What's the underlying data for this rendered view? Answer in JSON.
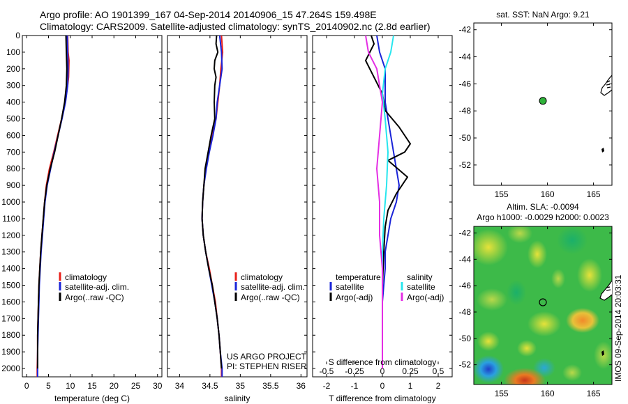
{
  "figure": {
    "title_line1": "Argo profile: AO 1901399_167 04-Sep-2014 20140906_15 47.264S 159.498E",
    "title_line2": "Climatology: CARS2009. Satellite-adjusted climatology: synTS_20140902.nc (2.8d earlier)",
    "side_stamp": "IMOS 09-Sep-2014 20:03:31",
    "project_line1": "US ARGO PROJECT",
    "project_line2": "PI: STEPHEN RISER",
    "colors": {
      "climatology": "#e8201a",
      "satellite": "#1a24d8",
      "argo": "#000000",
      "sat_salinity": "#27e6ee",
      "argo_salinity": "#e42ee4",
      "float_marker": "#2fb23a"
    }
  },
  "chart_data": [
    {
      "id": "temperature",
      "type": "line",
      "xlabel": "temperature (deg C)",
      "xlim": [
        -1,
        31
      ],
      "ylim": [
        2050,
        0
      ],
      "xticks": [
        "0",
        "5",
        "10",
        "15",
        "20",
        "25",
        "30"
      ],
      "yticks": [
        "0",
        "100",
        "200",
        "300",
        "400",
        "500",
        "600",
        "700",
        "800",
        "900",
        "1000",
        "1100",
        "1200",
        "1300",
        "1400",
        "1500",
        "1600",
        "1700",
        "1800",
        "1900",
        "2000"
      ],
      "legend": [
        "climatology",
        "satellite-adj. clim.",
        "Argo(..raw -QC)"
      ],
      "series": [
        {
          "name": "climatology",
          "color": "#e8201a",
          "points": [
            [
              9.4,
              0
            ],
            [
              9.5,
              100
            ],
            [
              9.7,
              150
            ],
            [
              9.6,
              250
            ],
            [
              9.4,
              300
            ],
            [
              8.8,
              400
            ],
            [
              8.0,
              500
            ],
            [
              7.1,
              600
            ],
            [
              6.2,
              700
            ],
            [
              5.2,
              800
            ],
            [
              4.5,
              900
            ],
            [
              4.1,
              1000
            ],
            [
              3.8,
              1100
            ],
            [
              3.5,
              1200
            ],
            [
              3.2,
              1300
            ],
            [
              3.0,
              1400
            ],
            [
              2.8,
              1500
            ],
            [
              2.7,
              1600
            ],
            [
              2.6,
              1700
            ],
            [
              2.5,
              1800
            ],
            [
              2.5,
              1900
            ],
            [
              2.4,
              2000
            ],
            [
              2.4,
              2050
            ]
          ]
        },
        {
          "name": "satellite-adj. clim.",
          "color": "#1a24d8",
          "points": [
            [
              9.3,
              0
            ],
            [
              9.4,
              100
            ],
            [
              9.5,
              200
            ],
            [
              9.4,
              300
            ],
            [
              8.9,
              400
            ],
            [
              8.1,
              500
            ],
            [
              7.2,
              600
            ],
            [
              6.3,
              700
            ],
            [
              5.5,
              800
            ],
            [
              4.7,
              900
            ],
            [
              4.2,
              1000
            ],
            [
              3.9,
              1100
            ],
            [
              3.6,
              1200
            ],
            [
              3.3,
              1300
            ],
            [
              3.1,
              1400
            ],
            [
              2.9,
              1500
            ],
            [
              2.8,
              1600
            ],
            [
              2.7,
              1700
            ],
            [
              2.6,
              1800
            ],
            [
              2.5,
              1900
            ],
            [
              2.5,
              2000
            ],
            [
              2.5,
              2050
            ]
          ]
        },
        {
          "name": "Argo(..raw -QC)",
          "color": "#000000",
          "points": [
            [
              9.0,
              0
            ],
            [
              9.1,
              100
            ],
            [
              9.2,
              200
            ],
            [
              9.1,
              300
            ],
            [
              8.7,
              400
            ],
            [
              8.0,
              500
            ],
            [
              7.2,
              600
            ],
            [
              6.4,
              700
            ],
            [
              5.4,
              800
            ],
            [
              4.6,
              900
            ],
            [
              4.1,
              1000
            ],
            [
              3.8,
              1100
            ],
            [
              3.5,
              1200
            ],
            [
              3.2,
              1300
            ],
            [
              3.0,
              1400
            ],
            [
              2.8,
              1500
            ],
            [
              2.7,
              1600
            ],
            [
              2.6,
              1700
            ],
            [
              2.5,
              1800
            ],
            [
              2.5,
              1900
            ],
            [
              2.5,
              2000
            ]
          ]
        }
      ]
    },
    {
      "id": "salinity",
      "type": "line",
      "xlabel": "salinity",
      "xlim": [
        33.8,
        36.1
      ],
      "ylim": [
        2050,
        0
      ],
      "xticks": [
        "34",
        "34.5",
        "35",
        "35.5",
        "36"
      ],
      "legend": [
        "climatology",
        "satellite-adj. clim.",
        "Argo(..raw -QC)"
      ],
      "series": [
        {
          "name": "climatology",
          "color": "#e8201a",
          "points": [
            [
              34.69,
              0
            ],
            [
              34.71,
              100
            ],
            [
              34.68,
              200
            ],
            [
              34.66,
              300
            ],
            [
              34.63,
              400
            ],
            [
              34.6,
              500
            ],
            [
              34.54,
              600
            ],
            [
              34.48,
              700
            ],
            [
              34.43,
              800
            ],
            [
              34.4,
              900
            ],
            [
              34.38,
              1000
            ],
            [
              34.37,
              1100
            ],
            [
              34.39,
              1200
            ],
            [
              34.43,
              1300
            ],
            [
              34.49,
              1400
            ],
            [
              34.54,
              1500
            ],
            [
              34.59,
              1600
            ],
            [
              34.62,
              1700
            ],
            [
              34.65,
              1800
            ],
            [
              34.67,
              1900
            ],
            [
              34.69,
              2000
            ],
            [
              34.69,
              2050
            ]
          ]
        },
        {
          "name": "satellite-adj. clim.",
          "color": "#1a24d8",
          "points": [
            [
              34.66,
              0
            ],
            [
              34.69,
              100
            ],
            [
              34.7,
              200
            ],
            [
              34.66,
              300
            ],
            [
              34.62,
              400
            ],
            [
              34.6,
              500
            ],
            [
              34.55,
              600
            ],
            [
              34.49,
              700
            ],
            [
              34.44,
              800
            ],
            [
              34.4,
              900
            ],
            [
              34.38,
              1000
            ],
            [
              34.37,
              1100
            ],
            [
              34.39,
              1200
            ],
            [
              34.43,
              1300
            ],
            [
              34.48,
              1400
            ],
            [
              34.53,
              1500
            ],
            [
              34.58,
              1600
            ],
            [
              34.62,
              1700
            ],
            [
              34.65,
              1800
            ],
            [
              34.67,
              1900
            ],
            [
              34.7,
              2000
            ],
            [
              34.7,
              2050
            ]
          ]
        },
        {
          "name": "Argo(..raw -QC)",
          "color": "#000000",
          "points": [
            [
              34.61,
              0
            ],
            [
              34.6,
              50
            ],
            [
              34.63,
              100
            ],
            [
              34.58,
              150
            ],
            [
              34.57,
              200
            ],
            [
              34.6,
              250
            ],
            [
              34.58,
              300
            ],
            [
              34.57,
              400
            ],
            [
              34.58,
              500
            ],
            [
              34.52,
              600
            ],
            [
              34.47,
              700
            ],
            [
              34.42,
              800
            ],
            [
              34.4,
              900
            ],
            [
              34.38,
              1000
            ],
            [
              34.37,
              1100
            ],
            [
              34.39,
              1200
            ],
            [
              34.43,
              1300
            ],
            [
              34.48,
              1400
            ],
            [
              34.54,
              1500
            ],
            [
              34.58,
              1600
            ],
            [
              34.62,
              1700
            ],
            [
              34.65,
              1800
            ],
            [
              34.67,
              1900
            ],
            [
              34.69,
              2000
            ]
          ]
        }
      ]
    },
    {
      "id": "difference",
      "type": "line",
      "xlabel": "T difference from climatology",
      "xlabel_top": "S difference from climatology",
      "xlim": [
        -2.5,
        2.5
      ],
      "ylim": [
        2050,
        0
      ],
      "xticks": [
        "-2",
        "-1",
        "0",
        "1",
        "2"
      ],
      "xticks_top": [
        "-0.5",
        "-0.25",
        "0",
        "0.25",
        "0.5"
      ],
      "legend_headers": [
        "temperature",
        "salinity"
      ],
      "legend": [
        "satellite",
        "Argo(-adj)",
        "satellite",
        "Argo(-adj)"
      ],
      "series": [
        {
          "name": "satellite",
          "group": "temperature",
          "color": "#1a24d8",
          "points": [
            [
              -0.2,
              0
            ],
            [
              -0.1,
              100
            ],
            [
              0.1,
              200
            ],
            [
              0.1,
              300
            ],
            [
              0.1,
              400
            ],
            [
              0.2,
              500
            ],
            [
              0.3,
              600
            ],
            [
              0.4,
              700
            ],
            [
              0.5,
              800
            ],
            [
              0.6,
              900
            ],
            [
              0.5,
              1000
            ],
            [
              0.3,
              1100
            ],
            [
              0.2,
              1200
            ],
            [
              0.1,
              1300
            ],
            [
              0.1,
              1400
            ],
            [
              0.05,
              1500
            ],
            [
              0.0,
              1600
            ],
            [
              0.0,
              1800
            ],
            [
              0.0,
              2000
            ]
          ]
        },
        {
          "name": "Argo(-adj)",
          "group": "temperature",
          "color": "#000000",
          "points": [
            [
              -0.4,
              0
            ],
            [
              -0.3,
              50
            ],
            [
              -0.6,
              150
            ],
            [
              -0.3,
              250
            ],
            [
              0.0,
              350
            ],
            [
              0.1,
              450
            ],
            [
              0.6,
              550
            ],
            [
              1.0,
              650
            ],
            [
              0.8,
              700
            ],
            [
              0.2,
              750
            ],
            [
              0.9,
              850
            ],
            [
              0.5,
              950
            ],
            [
              0.2,
              1050
            ],
            [
              0.1,
              1150
            ],
            [
              0.05,
              1300
            ],
            [
              0.0,
              1500
            ],
            [
              0.0,
              1800
            ],
            [
              0.0,
              2000
            ]
          ]
        },
        {
          "name": "satellite",
          "group": "salinity",
          "color": "#27e6ee",
          "points": [
            [
              0.4,
              0
            ],
            [
              0.3,
              100
            ],
            [
              0.1,
              200
            ],
            [
              0.0,
              350
            ],
            [
              0.1,
              500
            ],
            [
              0.2,
              700
            ],
            [
              0.15,
              900
            ],
            [
              0.05,
              1100
            ],
            [
              0.0,
              1300
            ],
            [
              0.0,
              1600
            ],
            [
              0.0,
              2000
            ]
          ]
        },
        {
          "name": "Argo(-adj)",
          "group": "salinity",
          "color": "#e42ee4",
          "points": [
            [
              -0.6,
              0
            ],
            [
              -0.5,
              100
            ],
            [
              -0.2,
              200
            ],
            [
              -0.1,
              300
            ],
            [
              0.0,
              400
            ],
            [
              -0.1,
              600
            ],
            [
              -0.2,
              800
            ],
            [
              -0.1,
              1000
            ],
            [
              -0.1,
              1200
            ],
            [
              0.0,
              1400
            ],
            [
              0.0,
              1700
            ],
            [
              0.0,
              2000
            ]
          ]
        }
      ]
    },
    {
      "id": "sst-map",
      "type": "scatter",
      "title": "sat. SST: NaN Argo: 9.21",
      "xlim": [
        152,
        167
      ],
      "ylim": [
        -53.5,
        -41.5
      ],
      "xticks": [
        "155",
        "160",
        "165"
      ],
      "yticks": [
        "-42",
        "-44",
        "-46",
        "-48",
        "-50",
        "-52"
      ],
      "float_position": [
        159.5,
        -47.26
      ]
    },
    {
      "id": "sla-map",
      "type": "heatmap",
      "title_line1": "Altim. SLA: -0.0094",
      "title_line2": "Argo h1000: -0.0029 h2000: 0.0023",
      "xlim": [
        152,
        167
      ],
      "ylim": [
        -53.5,
        -41.5
      ],
      "xticks": [
        "155",
        "160",
        "165"
      ],
      "yticks": [
        "-42",
        "-44",
        "-46",
        "-48",
        "-50",
        "-52"
      ],
      "float_position": [
        159.5,
        -47.26
      ]
    }
  ]
}
